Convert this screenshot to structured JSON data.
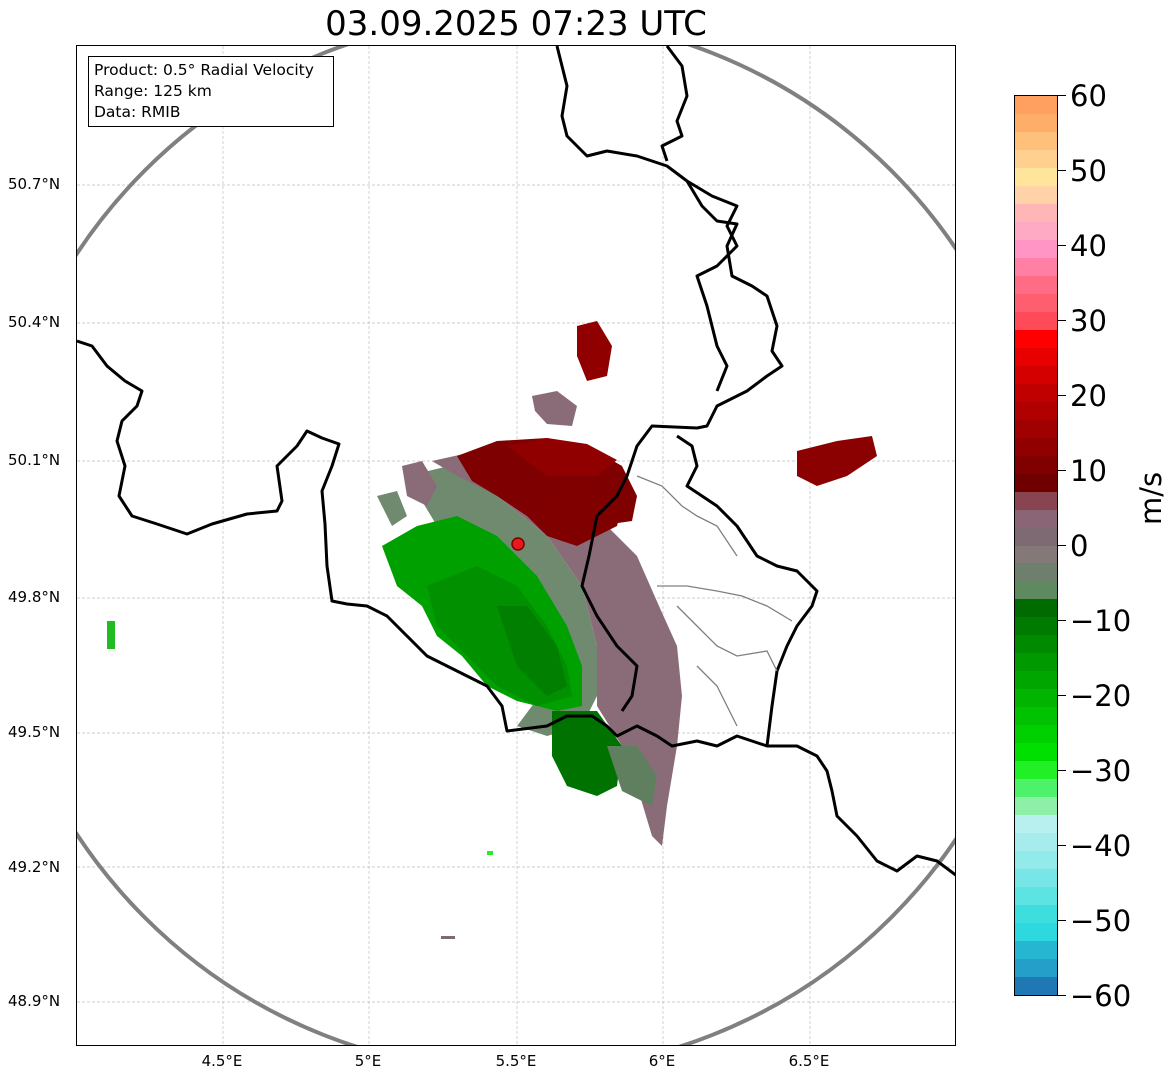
{
  "title": "03.09.2025 07:23 UTC",
  "info_box": {
    "product": "Product: 0.5° Radial Velocity",
    "range": "Range: 125 km",
    "data_source": "Data: RMIB"
  },
  "map": {
    "lon_ticks": [
      "4.5°E",
      "5°E",
      "5.5°E",
      "6°E",
      "6.5°E"
    ],
    "lat_ticks": [
      "50.7°N",
      "50.4°N",
      "50.1°N",
      "49.8°N",
      "49.5°N",
      "49.2°N",
      "48.9°N"
    ],
    "radar_site": {
      "lon": 5.505,
      "lat": 49.914
    },
    "range_ring_km": 125,
    "grid": true
  },
  "colorbar": {
    "unit": "m/s",
    "vmin": -60,
    "vmax": 60,
    "ticks": [
      "60",
      "50",
      "40",
      "30",
      "20",
      "10",
      "0",
      "−10",
      "−20",
      "−30",
      "−40",
      "−50",
      "−60"
    ],
    "colors": [
      "#1f78b4",
      "#239fc9",
      "#26b6d1",
      "#2dd8de",
      "#3fdede",
      "#5ee3e3",
      "#78e6e6",
      "#92eaea",
      "#a7ecec",
      "#b8efef",
      "#8ef0a8",
      "#4df26a",
      "#22f027",
      "#00e000",
      "#00d000",
      "#00c200",
      "#00b400",
      "#00a600",
      "#009900",
      "#008a00",
      "#007a00",
      "#006b00",
      "#5f8a5f",
      "#6e7f6e",
      "#857878",
      "#7d6a73",
      "#8a6575",
      "#884450",
      "#6e0000",
      "#800000",
      "#900000",
      "#a00000",
      "#b00000",
      "#c00000",
      "#d40000",
      "#e80000",
      "#ff0000",
      "#ff4a5a",
      "#ff5e70",
      "#ff6c86",
      "#ff7fa5",
      "#ff95c5",
      "#ffaac4",
      "#ffb6b6",
      "#ffd2a8",
      "#ffe49c",
      "#ffd090",
      "#ffc07c",
      "#ffae6a",
      "#ffa060"
    ]
  },
  "colors": {
    "range_ring": "#808080",
    "border": "#000000",
    "region_border": "#808080",
    "radar_marker": "#e8191e"
  }
}
